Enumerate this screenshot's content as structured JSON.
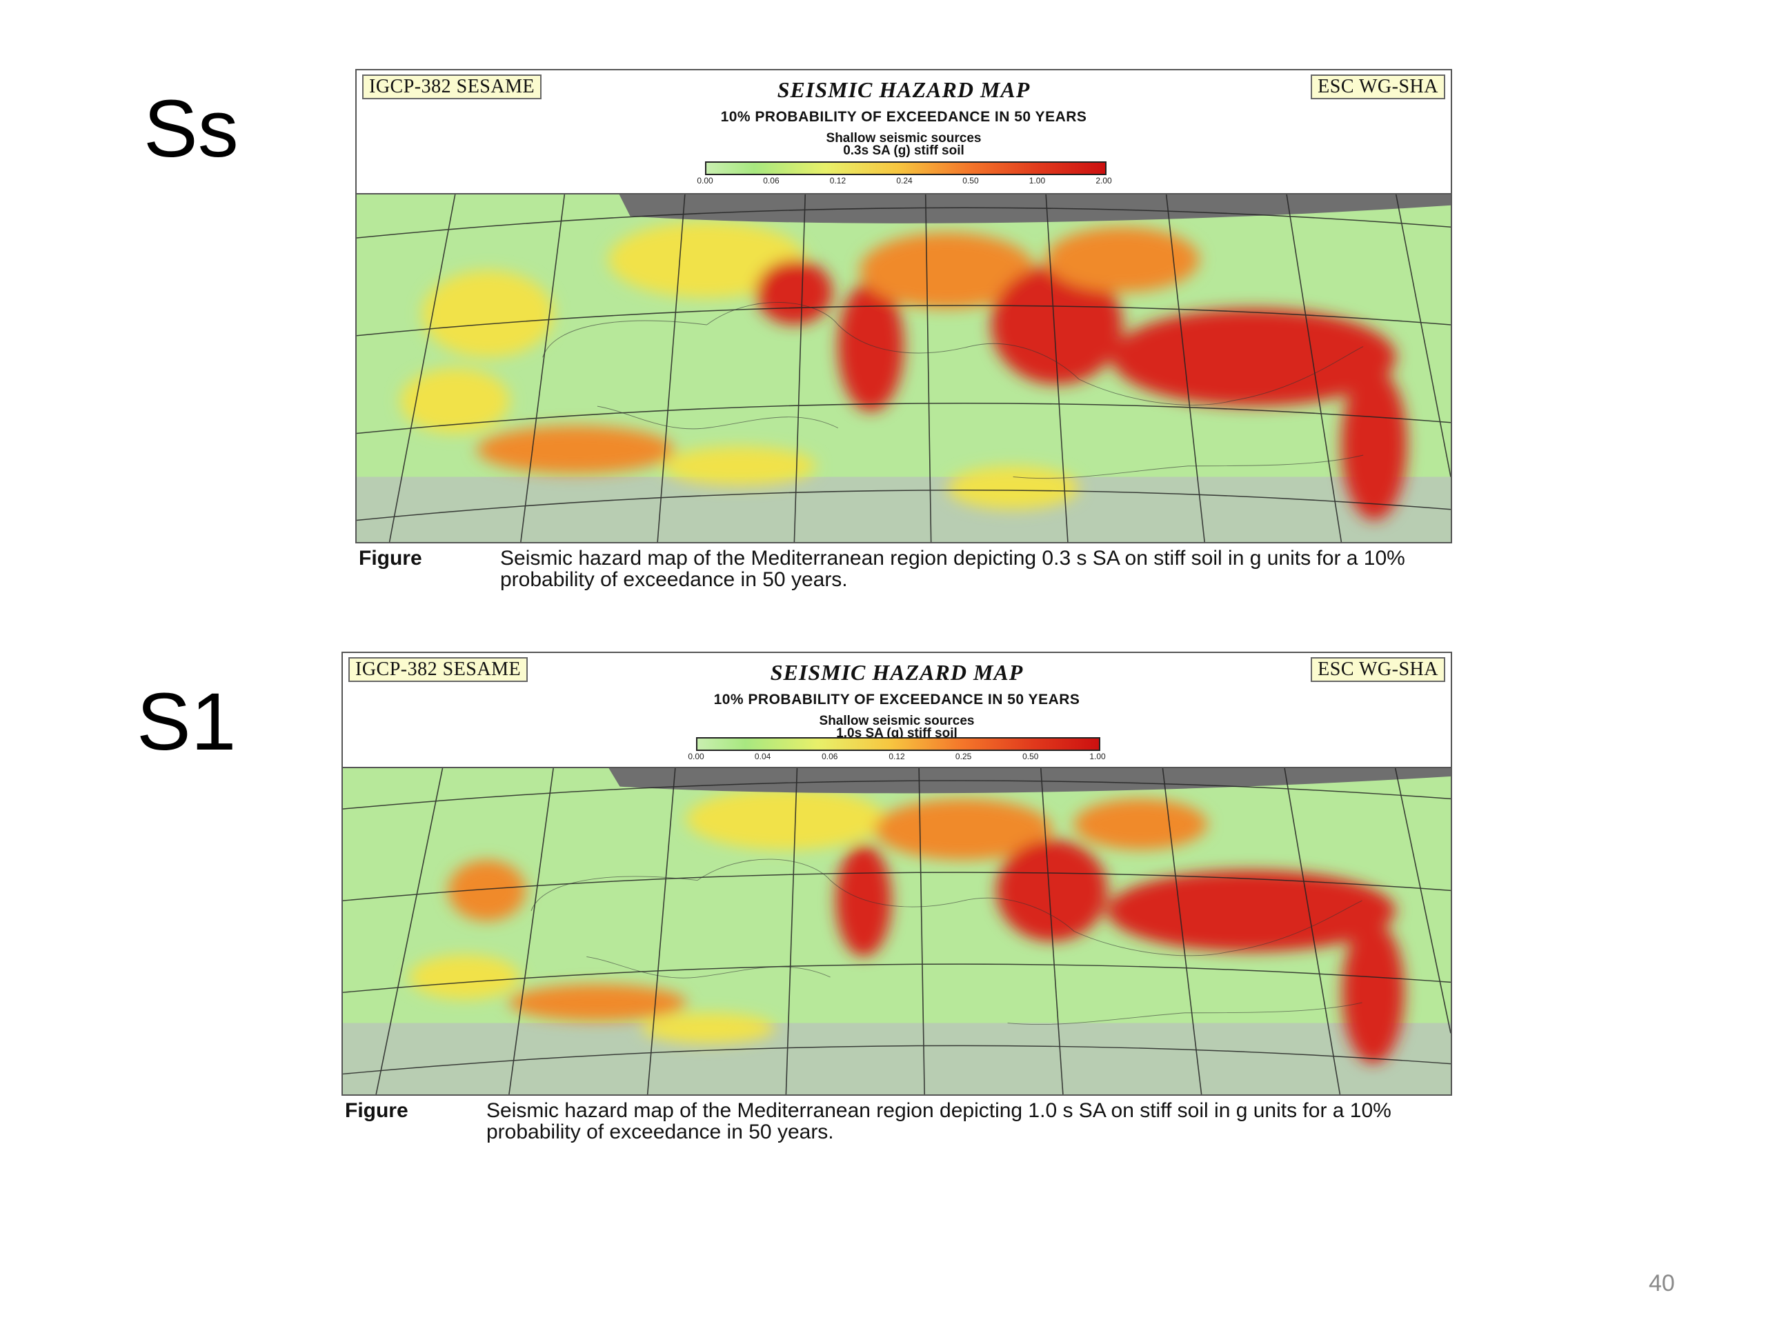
{
  "slide": {
    "label_top": "Ss",
    "label_bottom": "S1",
    "page_number": "40"
  },
  "figures": [
    {
      "tag_left": "IGCP-382 SESAME",
      "tag_right": "ESC WG-SHA",
      "title": "SEISMIC HAZARD MAP",
      "subtitle": "10% PROBABILITY OF EXCEEDANCE IN 50 YEARS",
      "source_line1": "Shallow seismic sources",
      "source_line2": "0.3s SA (g) stiff soil",
      "scale_labels": [
        "0.00",
        "0.06",
        "0.12",
        "0.24",
        "0.50",
        "1.00",
        "2.00"
      ],
      "caption_label": "Figure",
      "caption_text": "Seismic hazard map of the Mediterranean region depicting 0.3 s SA on stiff soil in g units for a 10% probability of exceedance in 50 years."
    },
    {
      "tag_left": "IGCP-382 SESAME",
      "tag_right": "ESC WG-SHA",
      "title": "SEISMIC HAZARD MAP",
      "subtitle": "10% PROBABILITY OF EXCEEDANCE IN 50 YEARS",
      "source_line1": "Shallow seismic sources",
      "source_line2": "1.0s SA (g) stiff soil",
      "scale_labels": [
        "0.00",
        "0.04",
        "0.06",
        "0.12",
        "0.25",
        "0.50",
        "1.00"
      ],
      "caption_label": "Figure",
      "caption_text": "Seismic hazard map of the Mediterranean region depicting 1.0 s SA on stiff soil in g units for a 10% probability of exceedance in 50 years."
    }
  ],
  "colors": {
    "sea": "#e9eef0",
    "no_data": "#6f6f6f",
    "low": "#b7e89a",
    "mid": "#f1e24a",
    "high": "#f08a2a",
    "very_high": "#d8251a",
    "desert": "#b8cdb2"
  }
}
